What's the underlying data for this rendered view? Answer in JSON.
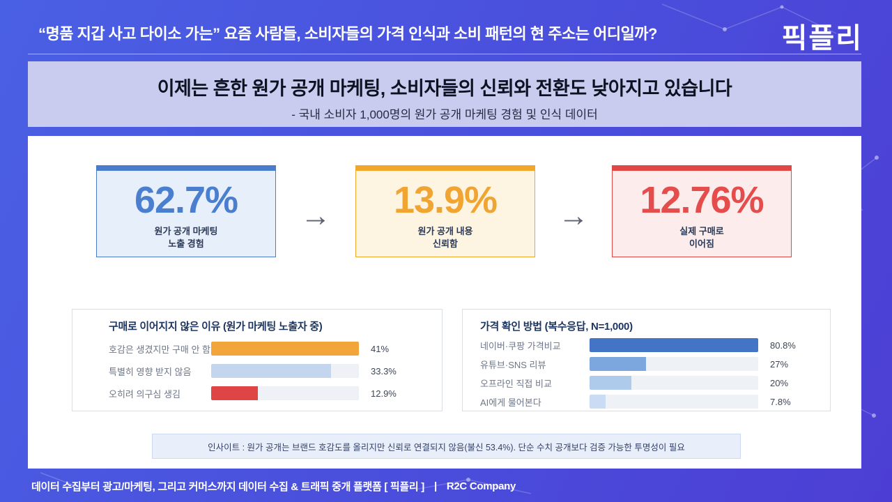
{
  "header": {
    "title": "“명품 지갑 사고 다이소 가는” 요즘 사람들, 소비자들의 가격 인식과 소비 패턴의 현 주소는 어디일까?",
    "logo": "픽플리"
  },
  "banner": {
    "title": "이제는 흔한 원가 공개 마케팅, 소비자들의 신뢰와 전환도 낮아지고 있습니다",
    "subtitle": "- 국내 소비자 1,000명의 원가 공개 마케팅 경험 및 인식 데이터"
  },
  "funnel": {
    "arrow": "→",
    "cards": [
      {
        "value": "62.7%",
        "label_line1": "원가 공개 마케팅",
        "label_line2": "노출 경험",
        "accent": "#4a7ccc",
        "bg": "#e7effa",
        "number_color": "#4a7fd0"
      },
      {
        "value": "13.9%",
        "label_line1": "원가 공개 내용",
        "label_line2": "신뢰함",
        "accent": "#f0a72b",
        "bg": "#fdf4e2",
        "number_color": "#f0a432"
      },
      {
        "value": "12.76%",
        "label_line1": "실제 구매로",
        "label_line2": "이어짐",
        "accent": "#e04848",
        "bg": "#fcecec",
        "number_color": "#e54c4c"
      }
    ]
  },
  "chart_data": [
    {
      "type": "bar",
      "orientation": "horizontal",
      "title": "구매로 이어지지 않은 이유 (원가 마케팅 노출자 중)",
      "categories": [
        "호감은 생겼지만 구매 안 함",
        "특별히 영향 받지 않음",
        "오히려 의구심 생김"
      ],
      "values": [
        41,
        33.3,
        12.9
      ],
      "value_labels": [
        "41%",
        "33.3%",
        "12.9%"
      ],
      "bar_colors": [
        "#f2a53a",
        "#c3d6ee",
        "#e04545"
      ],
      "track_color": "#eef1f6",
      "xlim": [
        0,
        41
      ],
      "grid": false,
      "legend": false
    },
    {
      "type": "bar",
      "orientation": "horizontal",
      "title": "가격 확인 방법 (복수응답, N=1,000)",
      "categories": [
        "네이버·쿠팡 가격비교",
        "유튜브·SNS 리뷰",
        "오프라인 직접 비교",
        "AI에게 물어본다"
      ],
      "values": [
        80.8,
        27,
        20,
        7.8
      ],
      "value_labels": [
        "80.8%",
        "27%",
        "20%",
        "7.8%"
      ],
      "bar_colors": [
        "#4374c6",
        "#7ba7de",
        "#aecbec",
        "#c9dcf4"
      ],
      "track_color": "#eef1f6",
      "xlim": [
        0,
        80.8
      ],
      "grid": false,
      "legend": false
    }
  ],
  "insight": {
    "text": "인사이트 : 원가 공개는 브랜드 호감도를 올리지만 신뢰로 연결되지 않음(불신 53.4%). 단순 수치 공개보다 검증 가능한 투명성이 필요"
  },
  "footer": {
    "platform": "데이터 수집부터 광고/마케팅, 그리고 커머스까지 데이터 수집 & 트래픽 중개 플랫폼 [ 픽플리 ]",
    "divider": "|",
    "company": "R2C Company"
  }
}
